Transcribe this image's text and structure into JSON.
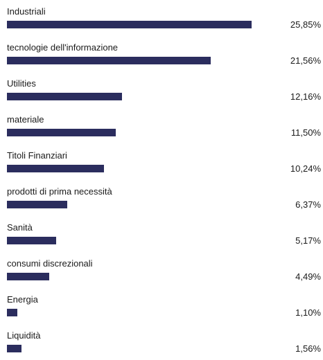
{
  "chart_data": {
    "type": "bar",
    "orientation": "horizontal",
    "categories": [
      "Industriali",
      "tecnologie dell'informazione",
      "Utilities",
      "materiale",
      "Titoli Finanziari",
      "prodotti di prima necessità",
      "Sanità",
      "consumi discrezionali",
      "Energia",
      "Liquidità"
    ],
    "values": [
      25.85,
      21.56,
      12.16,
      11.5,
      10.24,
      6.37,
      5.17,
      4.49,
      1.1,
      1.56
    ],
    "value_labels": [
      "25,85%",
      "21,56%",
      "12,16%",
      "11,50%",
      "10,24%",
      "6,37%",
      "5,17%",
      "4,49%",
      "1,10%",
      "1,56%"
    ],
    "bar_color": "#2b2d5e",
    "grid": false,
    "legend": "none"
  }
}
